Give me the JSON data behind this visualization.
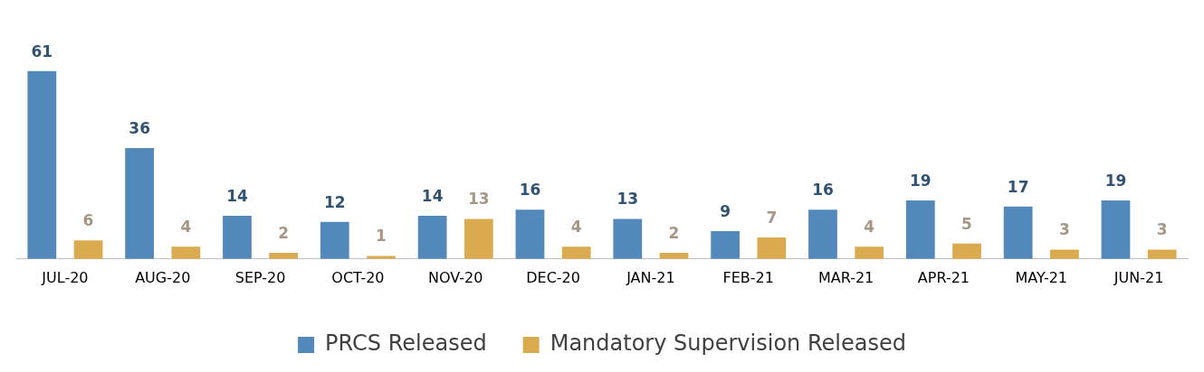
{
  "chart_data": {
    "type": "bar",
    "categories": [
      "JUL-20",
      "AUG-20",
      "SEP-20",
      "OCT-20",
      "NOV-20",
      "DEC-20",
      "JAN-21",
      "FEB-21",
      "MAR-21",
      "APR-21",
      "MAY-21",
      "JUN-21"
    ],
    "series": [
      {
        "name": "PRCS Released",
        "color": "#5288ba",
        "values": [
          61,
          36,
          14,
          12,
          14,
          16,
          13,
          9,
          16,
          19,
          17,
          19
        ]
      },
      {
        "name": "Mandatory Supervision Released",
        "color": "#d9aa4e",
        "values": [
          6,
          4,
          2,
          1,
          13,
          4,
          2,
          7,
          4,
          5,
          3,
          3
        ]
      }
    ],
    "data_labels": true,
    "legend": "bottom",
    "grid": false
  }
}
